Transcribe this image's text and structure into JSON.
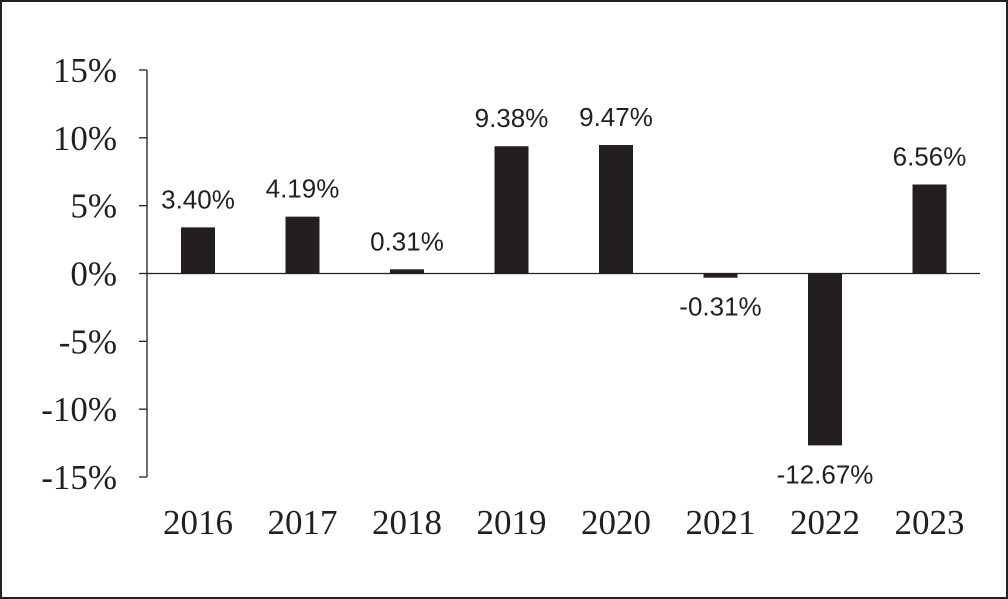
{
  "chart_data": {
    "type": "bar",
    "title": "",
    "xlabel": "",
    "ylabel": "",
    "categories": [
      "2016",
      "2017",
      "2018",
      "2019",
      "2020",
      "2021",
      "2022",
      "2023"
    ],
    "values": [
      3.4,
      4.19,
      0.31,
      9.38,
      9.47,
      -0.31,
      -12.67,
      6.56
    ],
    "data_labels": [
      "3.40%",
      "4.19%",
      "0.31%",
      "9.38%",
      "9.47%",
      "-0.31%",
      "-12.67%",
      "6.56%"
    ],
    "ylim": [
      -15,
      15
    ],
    "yticks": [
      15,
      10,
      5,
      0,
      -5,
      -10,
      -15
    ],
    "ytick_labels": [
      "15%",
      "10%",
      "5%",
      "0%",
      "-5%",
      "-10%",
      "-15%"
    ],
    "grid": false,
    "legend": "none",
    "bar_color": "#231f20",
    "axis_color": "#231f20"
  }
}
